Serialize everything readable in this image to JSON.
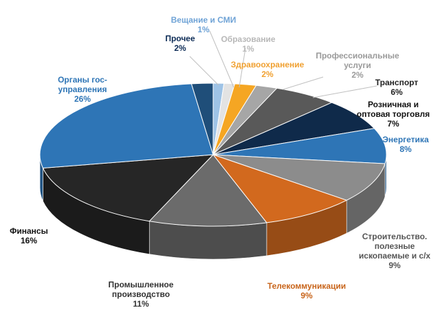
{
  "chart_data": {
    "type": "pie",
    "style": "3d-exploded-none",
    "slices": [
      {
        "label": "Вещание и СМИ",
        "value": 1,
        "value_label": "1%",
        "color": "#9ec3e6",
        "label_color": "#6fa3d6"
      },
      {
        "label": "Образование",
        "value": 1,
        "value_label": "1%",
        "color": "#e3e3e3",
        "label_color": "#b8b8b8"
      },
      {
        "label": "Здравоохранение",
        "value": 2,
        "value_label": "2%",
        "color": "#f5a623",
        "label_color": "#f0a030"
      },
      {
        "label": "Профессиональные услуги",
        "value": 2,
        "value_label": "2%",
        "color": "#a6a6a6",
        "label_color": "#9a9a9a"
      },
      {
        "label": "Транспорт",
        "value": 6,
        "value_label": "6%",
        "color": "#595959",
        "label_color": "#222222"
      },
      {
        "label": "Розничная и оптовая торговля",
        "value": 7,
        "value_label": "7%",
        "color": "#0f2a4a",
        "label_color": "#111111"
      },
      {
        "label": "Энергетика",
        "value": 8,
        "value_label": "8%",
        "color": "#2e75b6",
        "label_color": "#2e75b6"
      },
      {
        "label": "Строительство. полезные ископаемые и с/х",
        "value": 9,
        "value_label": "9%",
        "color": "#8c8c8c",
        "label_color": "#555555"
      },
      {
        "label": "Телекоммуникации",
        "value": 9,
        "value_label": "9%",
        "color": "#d2691e",
        "label_color": "#c8641a"
      },
      {
        "label": "Промышленное производство",
        "value": 11,
        "value_label": "11%",
        "color": "#6b6b6b",
        "label_color": "#333333"
      },
      {
        "label": "Финансы",
        "value": 16,
        "value_label": "16%",
        "color": "#262626",
        "label_color": "#111111"
      },
      {
        "label": "Органы гос-управления",
        "value": 26,
        "value_label": "26%",
        "color": "#2e75b6",
        "label_color": "#2e75b6"
      },
      {
        "label": "Прочее",
        "value": 2,
        "value_label": "2%",
        "color": "#1f4e79",
        "label_color": "#0b2a55"
      }
    ]
  }
}
